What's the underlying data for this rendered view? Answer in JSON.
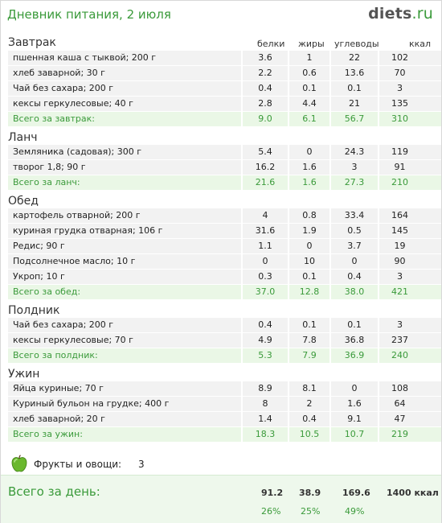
{
  "header": {
    "title": "Дневник питания, 2 июля",
    "logo_main": "diets",
    "logo_tld": ".ru"
  },
  "columns": {
    "protein": "белки",
    "fat": "жиры",
    "carbs": "углеводы",
    "kcal": "ккал"
  },
  "sections": [
    {
      "title": "Завтрак",
      "items": [
        {
          "name": "пшенная каша с тыквой; 200 г",
          "protein": "3.6",
          "fat": "1",
          "carbs": "22",
          "kcal": "102"
        },
        {
          "name": "хлеб заварной; 30 г",
          "protein": "2.2",
          "fat": "0.6",
          "carbs": "13.6",
          "kcal": "70"
        },
        {
          "name": "Чай без сахара; 200 г",
          "protein": "0.4",
          "fat": "0.1",
          "carbs": "0.1",
          "kcal": "3"
        },
        {
          "name": "кексы геркулесовые; 40 г",
          "protein": "2.8",
          "fat": "4.4",
          "carbs": "21",
          "kcal": "135"
        }
      ],
      "total": {
        "label": "Всего за завтрак:",
        "protein": "9.0",
        "fat": "6.1",
        "carbs": "56.7",
        "kcal": "310"
      }
    },
    {
      "title": "Ланч",
      "items": [
        {
          "name": "Земляника (садовая); 300 г",
          "protein": "5.4",
          "fat": "0",
          "carbs": "24.3",
          "kcal": "119"
        },
        {
          "name": "творог 1,8; 90 г",
          "protein": "16.2",
          "fat": "1.6",
          "carbs": "3",
          "kcal": "91"
        }
      ],
      "total": {
        "label": "Всего за ланч:",
        "protein": "21.6",
        "fat": "1.6",
        "carbs": "27.3",
        "kcal": "210"
      }
    },
    {
      "title": "Обед",
      "items": [
        {
          "name": "картофель отварной; 200 г",
          "protein": "4",
          "fat": "0.8",
          "carbs": "33.4",
          "kcal": "164"
        },
        {
          "name": "куриная грудка отварная; 106 г",
          "protein": "31.6",
          "fat": "1.9",
          "carbs": "0.5",
          "kcal": "145"
        },
        {
          "name": "Редис; 90 г",
          "protein": "1.1",
          "fat": "0",
          "carbs": "3.7",
          "kcal": "19"
        },
        {
          "name": "Подсолнечное масло; 10 г",
          "protein": "0",
          "fat": "10",
          "carbs": "0",
          "kcal": "90"
        },
        {
          "name": "Укроп; 10 г",
          "protein": "0.3",
          "fat": "0.1",
          "carbs": "0.4",
          "kcal": "3"
        }
      ],
      "total": {
        "label": "Всего за обед:",
        "protein": "37.0",
        "fat": "12.8",
        "carbs": "38.0",
        "kcal": "421"
      }
    },
    {
      "title": "Полдник",
      "items": [
        {
          "name": "Чай без сахара; 200 г",
          "protein": "0.4",
          "fat": "0.1",
          "carbs": "0.1",
          "kcal": "3"
        },
        {
          "name": "кексы геркулесовые; 70 г",
          "protein": "4.9",
          "fat": "7.8",
          "carbs": "36.8",
          "kcal": "237"
        }
      ],
      "total": {
        "label": "Всего за полдник:",
        "protein": "5.3",
        "fat": "7.9",
        "carbs": "36.9",
        "kcal": "240"
      }
    },
    {
      "title": "Ужин",
      "items": [
        {
          "name": "Яйца куриные; 70 г",
          "protein": "8.9",
          "fat": "8.1",
          "carbs": "0",
          "kcal": "108"
        },
        {
          "name": "Куриный бульон на грудке; 400 г",
          "protein": "8",
          "fat": "2",
          "carbs": "1.6",
          "kcal": "64"
        },
        {
          "name": "хлеб заварной; 20 г",
          "protein": "1.4",
          "fat": "0.4",
          "carbs": "9.1",
          "kcal": "47"
        }
      ],
      "total": {
        "label": "Всего за ужин:",
        "protein": "18.3",
        "fat": "10.5",
        "carbs": "10.7",
        "kcal": "219"
      }
    }
  ],
  "fruits": {
    "icon": "apple-icon",
    "label": "Фрукты и овощи:",
    "count": "3"
  },
  "day_total": {
    "label": "Всего за день:",
    "protein": "91.2",
    "fat": "38.9",
    "carbs": "169.6",
    "kcal": "1400 ккал",
    "protein_pct": "26%",
    "fat_pct": "25%",
    "carbs_pct": "49%"
  },
  "colors": {
    "accent_green": "#3a9a3a",
    "row_bg": "#f2f2f2",
    "total_bg": "#eaf7e6"
  }
}
